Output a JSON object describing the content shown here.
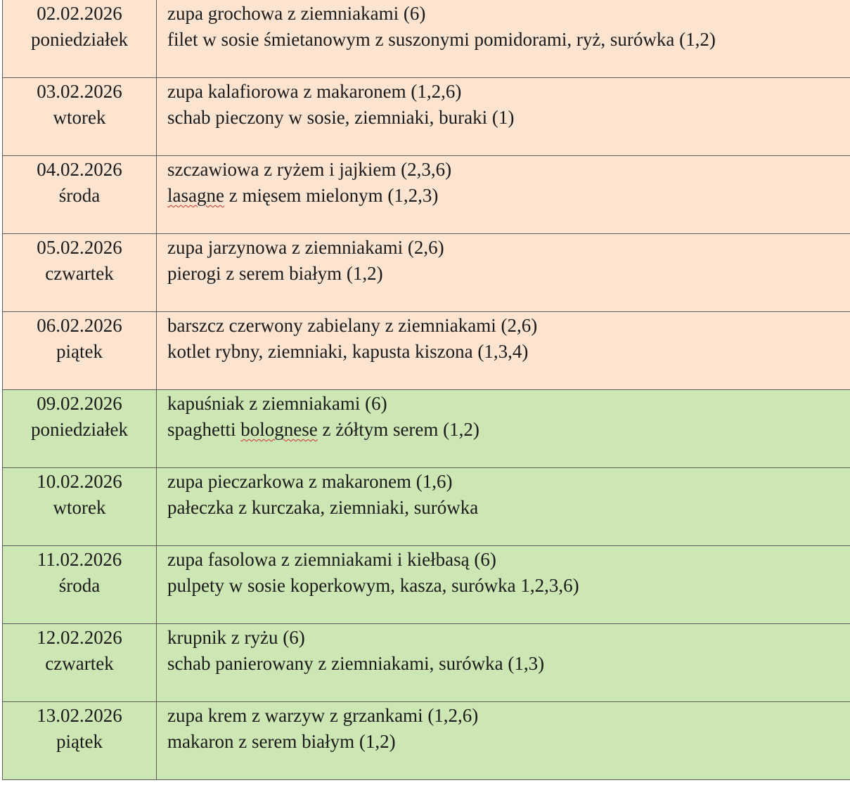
{
  "rows": [
    {
      "week": 1,
      "date": "02.02.2026",
      "day": "poniedziałek",
      "soup": "zupa grochowa z ziemniakami (6)",
      "main": "filet w sosie śmietanowym z suszonymi pomidorami, ryż, surówka (1,2)"
    },
    {
      "week": 1,
      "date": "03.02.2026",
      "day": "wtorek",
      "soup": "zupa kalafiorowa z makaronem (1,2,6)",
      "main": "schab pieczony w sosie, ziemniaki, buraki (1)"
    },
    {
      "week": 1,
      "date": "04.02.2026",
      "day": "środa",
      "soup": "szczawiowa z ryżem i jajkiem (2,3,6)",
      "main_marked": "lasagne",
      "main_rest": " z mięsem mielonym (1,2,3)"
    },
    {
      "week": 1,
      "date": "05.02.2026",
      "day": "czwartek",
      "soup": "zupa jarzynowa z ziemniakami (2,6)",
      "main": "pierogi z serem białym (1,2)"
    },
    {
      "week": 1,
      "date": "06.02.2026",
      "day": "piątek",
      "soup": "barszcz czerwony zabielany z ziemniakami (2,6)",
      "main": "kotlet rybny, ziemniaki, kapusta kiszona (1,3,4)"
    },
    {
      "week": 2,
      "date": "09.02.2026",
      "day": "poniedziałek",
      "soup": "kapuśniak z ziemniakami (6)",
      "main_pre": "spaghetti ",
      "main_marked": "bolognese",
      "main_rest": " z żółtym serem (1,2)"
    },
    {
      "week": 2,
      "date": "10.02.2026",
      "day": "wtorek",
      "soup": "zupa pieczarkowa z makaronem (1,6)",
      "main": "pałeczka z kurczaka, ziemniaki, surówka"
    },
    {
      "week": 2,
      "date": "11.02.2026",
      "day": "środa",
      "soup": "zupa fasolowa z ziemniakami i kiełbasą (6)",
      "main": "pulpety w sosie koperkowym, kasza, surówka 1,2,3,6)"
    },
    {
      "week": 2,
      "date": "12.02.2026",
      "day": "czwartek",
      "soup": "krupnik z ryżu (6)",
      "main": "schab panierowany z ziemniakami, surówka (1,3)"
    },
    {
      "week": 2,
      "date": "13.02.2026",
      "day": "piątek",
      "soup": "zupa krem z warzyw z grzankami (1,2,6)",
      "main": "makaron z serem białym (1,2)"
    }
  ],
  "colors": {
    "week1_bg": "#fde4d0",
    "week2_bg": "#cce6b4",
    "border": "#5a5a5a",
    "spellcheck_underline": "#d03030"
  }
}
